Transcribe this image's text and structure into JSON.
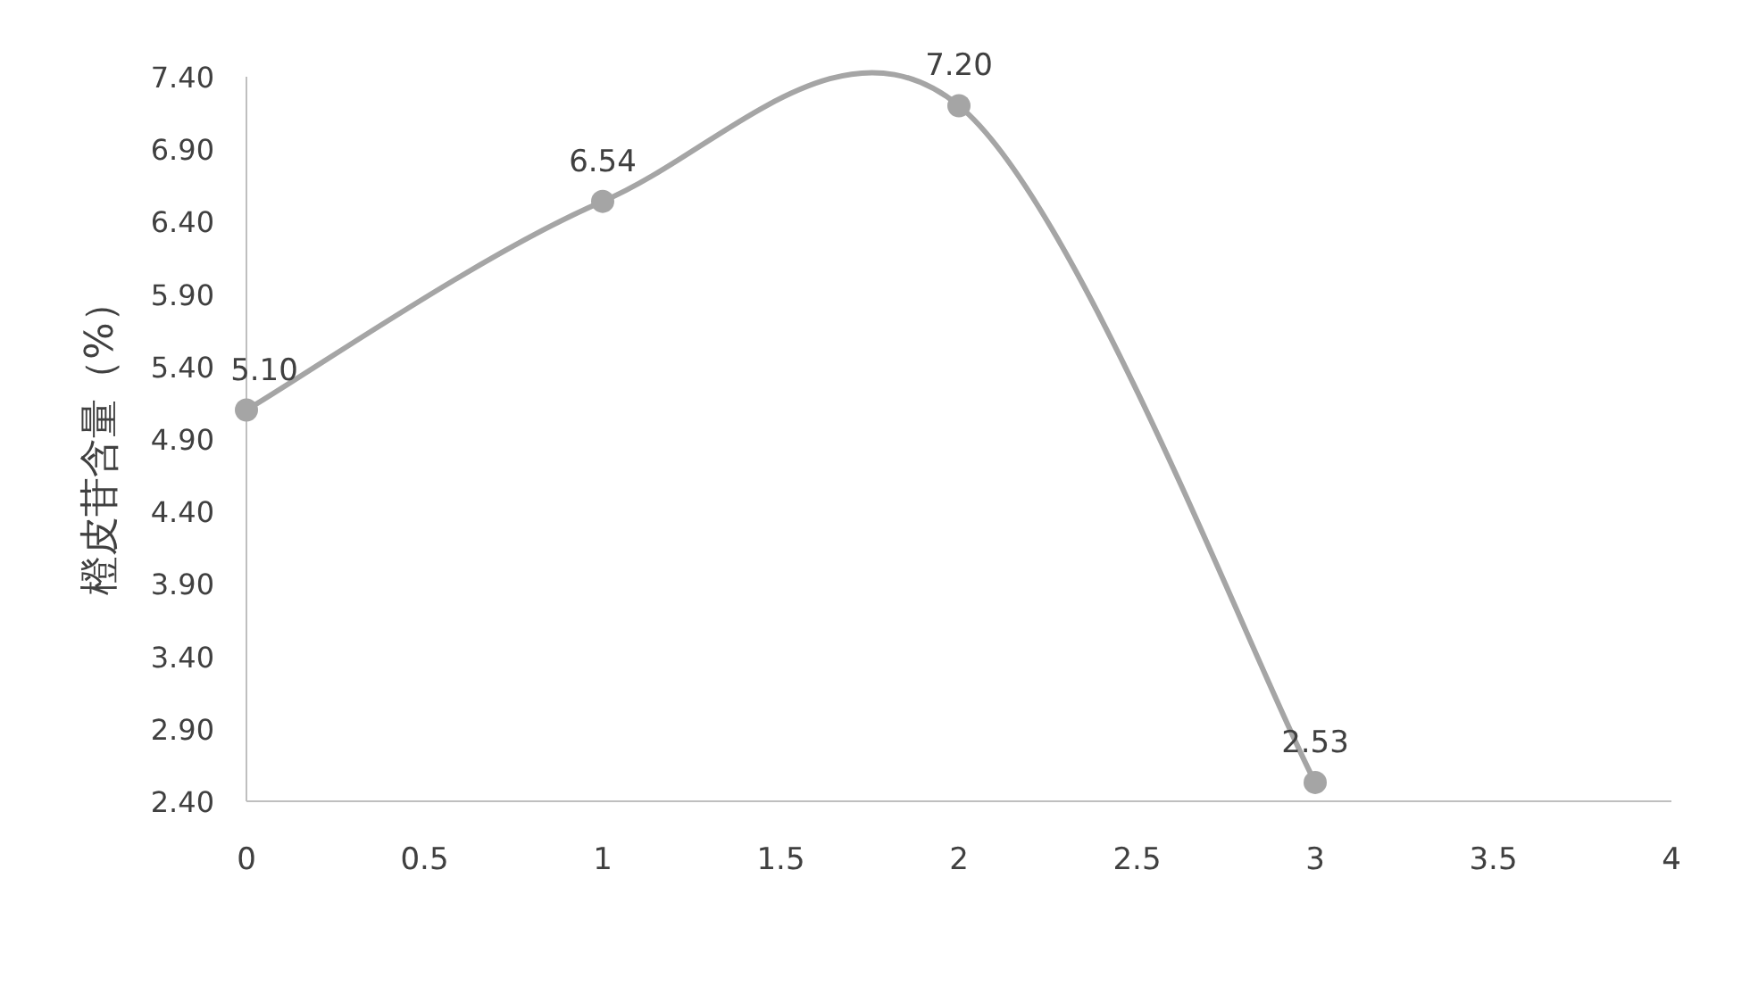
{
  "chart_data": {
    "type": "line",
    "ylabel": "橙皮苷含量（%）",
    "x": [
      0,
      1,
      2,
      3
    ],
    "series": [
      {
        "color": "#a5a5a5",
        "values": [
          5.1,
          6.54,
          7.2,
          2.53
        ],
        "value_labels": [
          "5.10",
          "6.54",
          "7.20",
          "2.53"
        ]
      }
    ],
    "xlim": [
      0,
      4
    ],
    "xticks": [
      0,
      0.5,
      1,
      1.5,
      2,
      2.5,
      3,
      3.5,
      4
    ],
    "ylim": [
      2.4,
      7.4
    ],
    "yticks": [
      {
        "value": 2.4,
        "label": "2.40"
      },
      {
        "value": 2.9,
        "label": "2.90"
      },
      {
        "value": 3.4,
        "label": "3.40"
      },
      {
        "value": 3.9,
        "label": "3.90"
      },
      {
        "value": 4.4,
        "label": "4.40"
      },
      {
        "value": 4.9,
        "label": "4.90"
      },
      {
        "value": 5.4,
        "label": "5.40"
      },
      {
        "value": 5.9,
        "label": "5.90"
      },
      {
        "value": 6.4,
        "label": "6.40"
      },
      {
        "value": 6.9,
        "label": "6.90"
      },
      {
        "value": 7.4,
        "label": "7.40"
      }
    ],
    "marker": "circle",
    "line_style": "solid"
  }
}
